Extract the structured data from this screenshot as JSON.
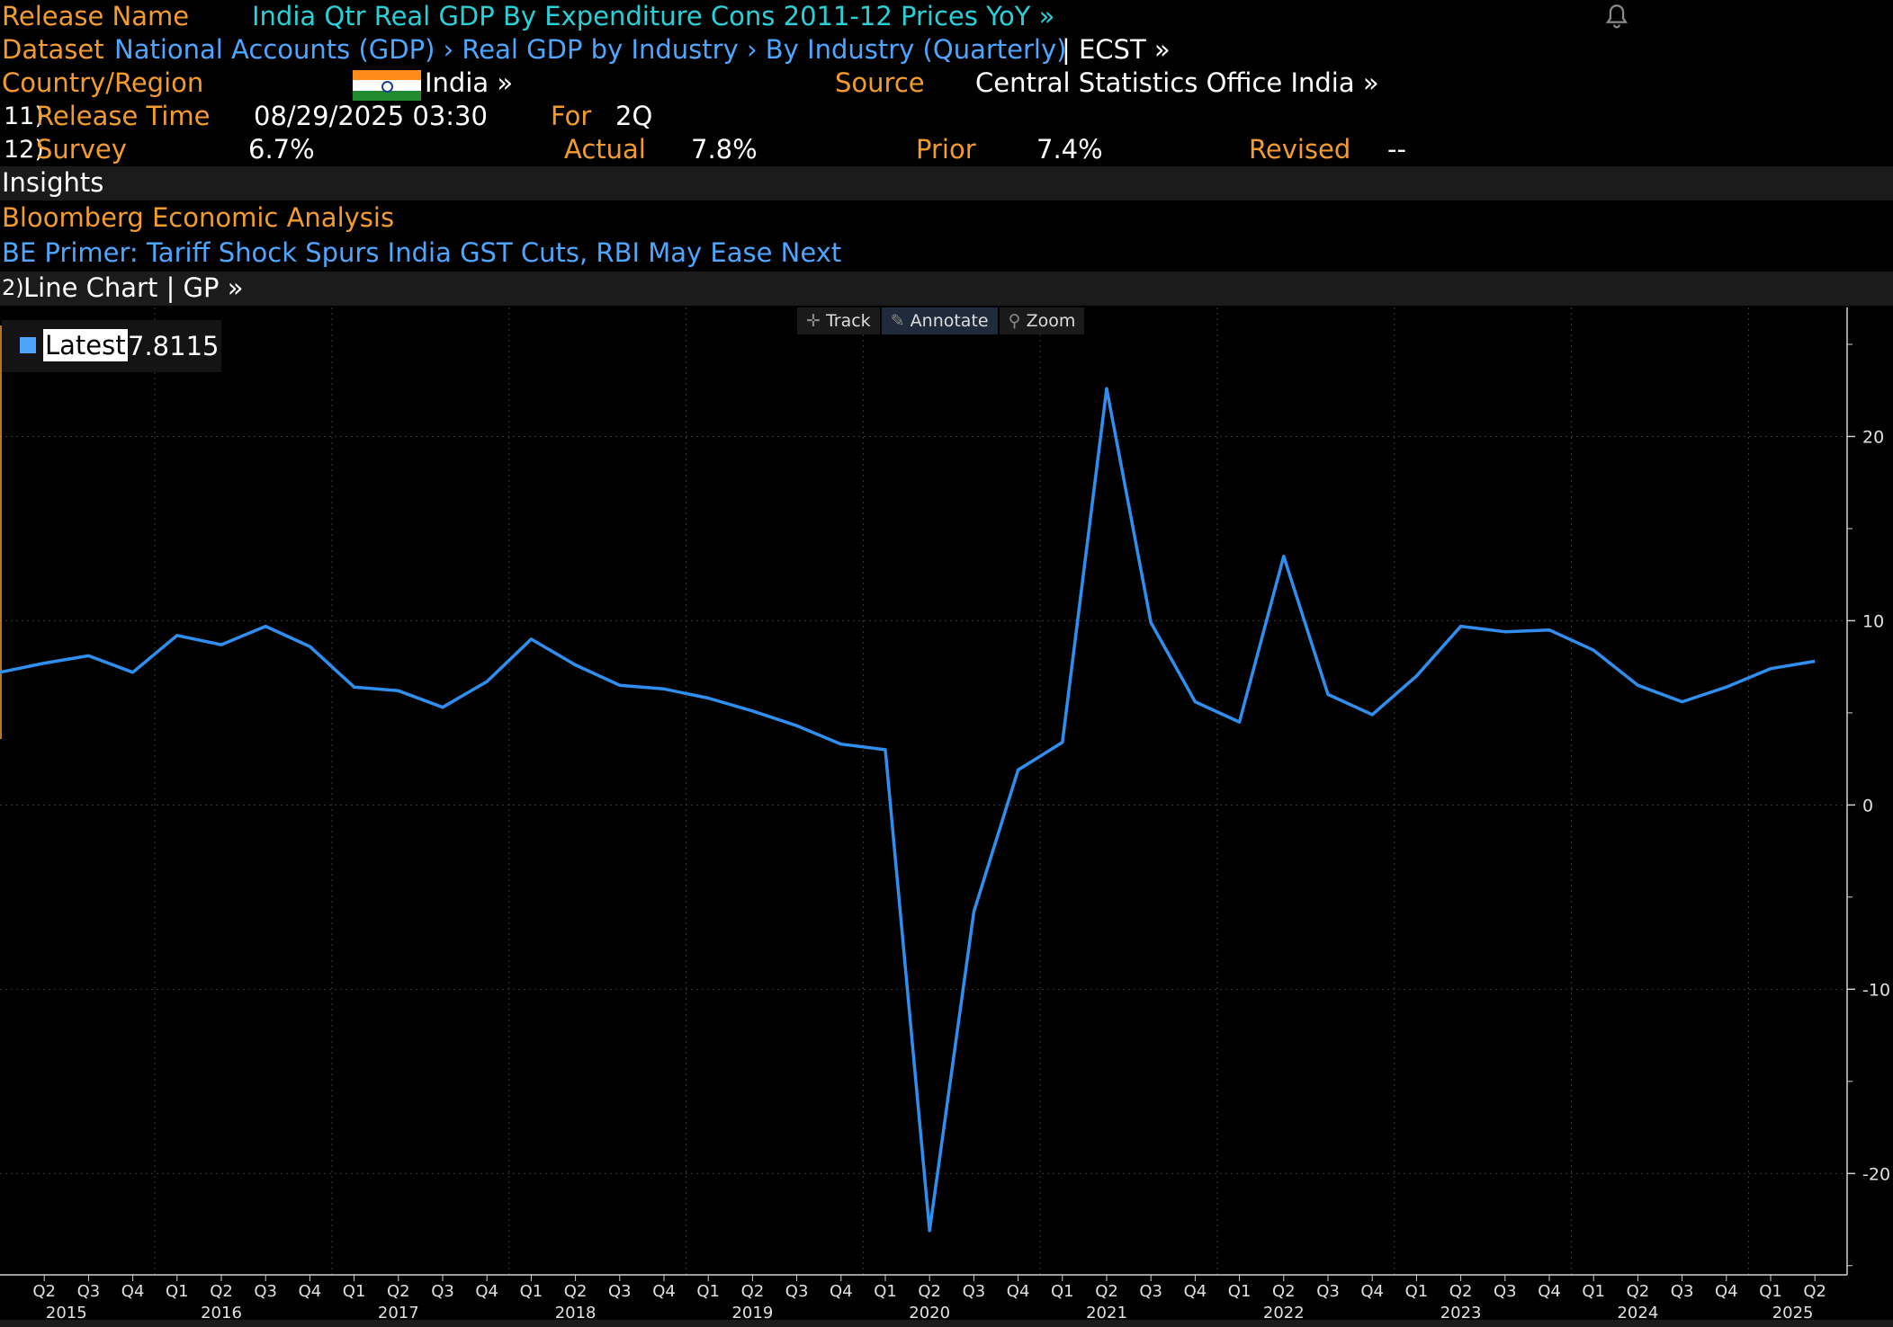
{
  "header": {
    "release_name_label": "Release Name",
    "release_name_value": "India Qtr Real GDP By Expenditure Cons 2011-12 Prices YoY »",
    "dataset_label": "Dataset",
    "dataset_path": "National Accounts (GDP) › Real GDP by Industry › By Industry (Quarterly)",
    "dataset_ticker": "| ECST »",
    "country_label": "Country/Region",
    "country_value": "India »",
    "source_label": "Source",
    "source_value": "Central Statistics Office India »",
    "release_time_num": "11)",
    "release_time_label": "Release Time",
    "release_time_value": "08/29/2025 03:30",
    "for_label": "For",
    "for_value": "2Q",
    "survey_num": "12)",
    "survey_label": "Survey",
    "survey_value": "6.7%",
    "actual_label": "Actual",
    "actual_value": "7.8%",
    "prior_label": "Prior",
    "prior_value": "7.4%",
    "revised_label": "Revised",
    "revised_value": "--"
  },
  "insights": {
    "title": "Insights",
    "analysis_label": "Bloomberg Economic Analysis",
    "primer_link": "BE Primer: Tariff Shock Spurs India GST Cuts, RBI May Ease Next"
  },
  "chart_header": {
    "num": "2)",
    "label": "Line Chart | GP »"
  },
  "toolbar": {
    "track": "Track",
    "annotate": "Annotate",
    "zoom": "Zoom"
  },
  "legend": {
    "series_label": "Latest",
    "series_value": "7.8115"
  },
  "colors": {
    "line": "#2f8ff0",
    "label_orange": "#f39c2d",
    "link_blue": "#4da6ff",
    "teal": "#2ad0d8",
    "bg": "#000000",
    "grid": "#2a2a2a"
  },
  "chart_data": {
    "type": "line",
    "title": "",
    "xlabel": "",
    "ylabel": "",
    "ylim": [
      -25.5,
      27
    ],
    "y_ticks": [
      20,
      10,
      0,
      -10,
      -20
    ],
    "grid": true,
    "legend_position": "top-left",
    "y_axis_position": "right",
    "x": [
      "2015 Q1",
      "2015 Q2",
      "2015 Q3",
      "2015 Q4",
      "2016 Q1",
      "2016 Q2",
      "2016 Q3",
      "2016 Q4",
      "2017 Q1",
      "2017 Q2",
      "2017 Q3",
      "2017 Q4",
      "2018 Q1",
      "2018 Q2",
      "2018 Q3",
      "2018 Q4",
      "2019 Q1",
      "2019 Q2",
      "2019 Q3",
      "2019 Q4",
      "2020 Q1",
      "2020 Q2",
      "2020 Q3",
      "2020 Q4",
      "2021 Q1",
      "2021 Q2",
      "2021 Q3",
      "2021 Q4",
      "2022 Q1",
      "2022 Q2",
      "2022 Q3",
      "2022 Q4",
      "2023 Q1",
      "2023 Q2",
      "2023 Q3",
      "2023 Q4",
      "2024 Q1",
      "2024 Q2",
      "2024 Q3",
      "2024 Q4",
      "2025 Q1",
      "2025 Q2"
    ],
    "x_quarter_labels": [
      "Q2",
      "Q3",
      "Q4",
      "Q1",
      "Q2",
      "Q3",
      "Q4",
      "Q1",
      "Q2",
      "Q3",
      "Q4",
      "Q1",
      "Q2",
      "Q3",
      "Q4",
      "Q1",
      "Q2",
      "Q3",
      "Q4",
      "Q1",
      "Q2",
      "Q3",
      "Q4",
      "Q1",
      "Q2",
      "Q3",
      "Q4",
      "Q1",
      "Q2",
      "Q3",
      "Q4",
      "Q1",
      "Q2",
      "Q3",
      "Q4",
      "Q1",
      "Q2",
      "Q3",
      "Q4",
      "Q1",
      "Q2"
    ],
    "x_quarter_start_index": 1,
    "x_year_labels": [
      {
        "label": "2015",
        "index": 1.5
      },
      {
        "label": "2016",
        "index": 5
      },
      {
        "label": "2017",
        "index": 9
      },
      {
        "label": "2018",
        "index": 13
      },
      {
        "label": "2019",
        "index": 17
      },
      {
        "label": "2020",
        "index": 21
      },
      {
        "label": "2021",
        "index": 25
      },
      {
        "label": "2022",
        "index": 29
      },
      {
        "label": "2023",
        "index": 33
      },
      {
        "label": "2024",
        "index": 37
      },
      {
        "label": "2025",
        "index": 40.5
      }
    ],
    "series": [
      {
        "name": "Latest",
        "values": [
          7.2,
          7.7,
          8.1,
          7.2,
          9.2,
          8.7,
          9.7,
          8.6,
          6.4,
          6.2,
          5.3,
          6.7,
          9.0,
          7.6,
          6.5,
          6.3,
          5.8,
          5.1,
          4.3,
          3.3,
          3.0,
          -23.1,
          -5.8,
          1.9,
          3.4,
          22.6,
          9.9,
          5.6,
          4.5,
          13.5,
          6.0,
          4.9,
          7.0,
          9.7,
          9.4,
          9.5,
          8.4,
          6.5,
          5.6,
          6.4,
          7.4,
          7.8
        ]
      }
    ]
  }
}
